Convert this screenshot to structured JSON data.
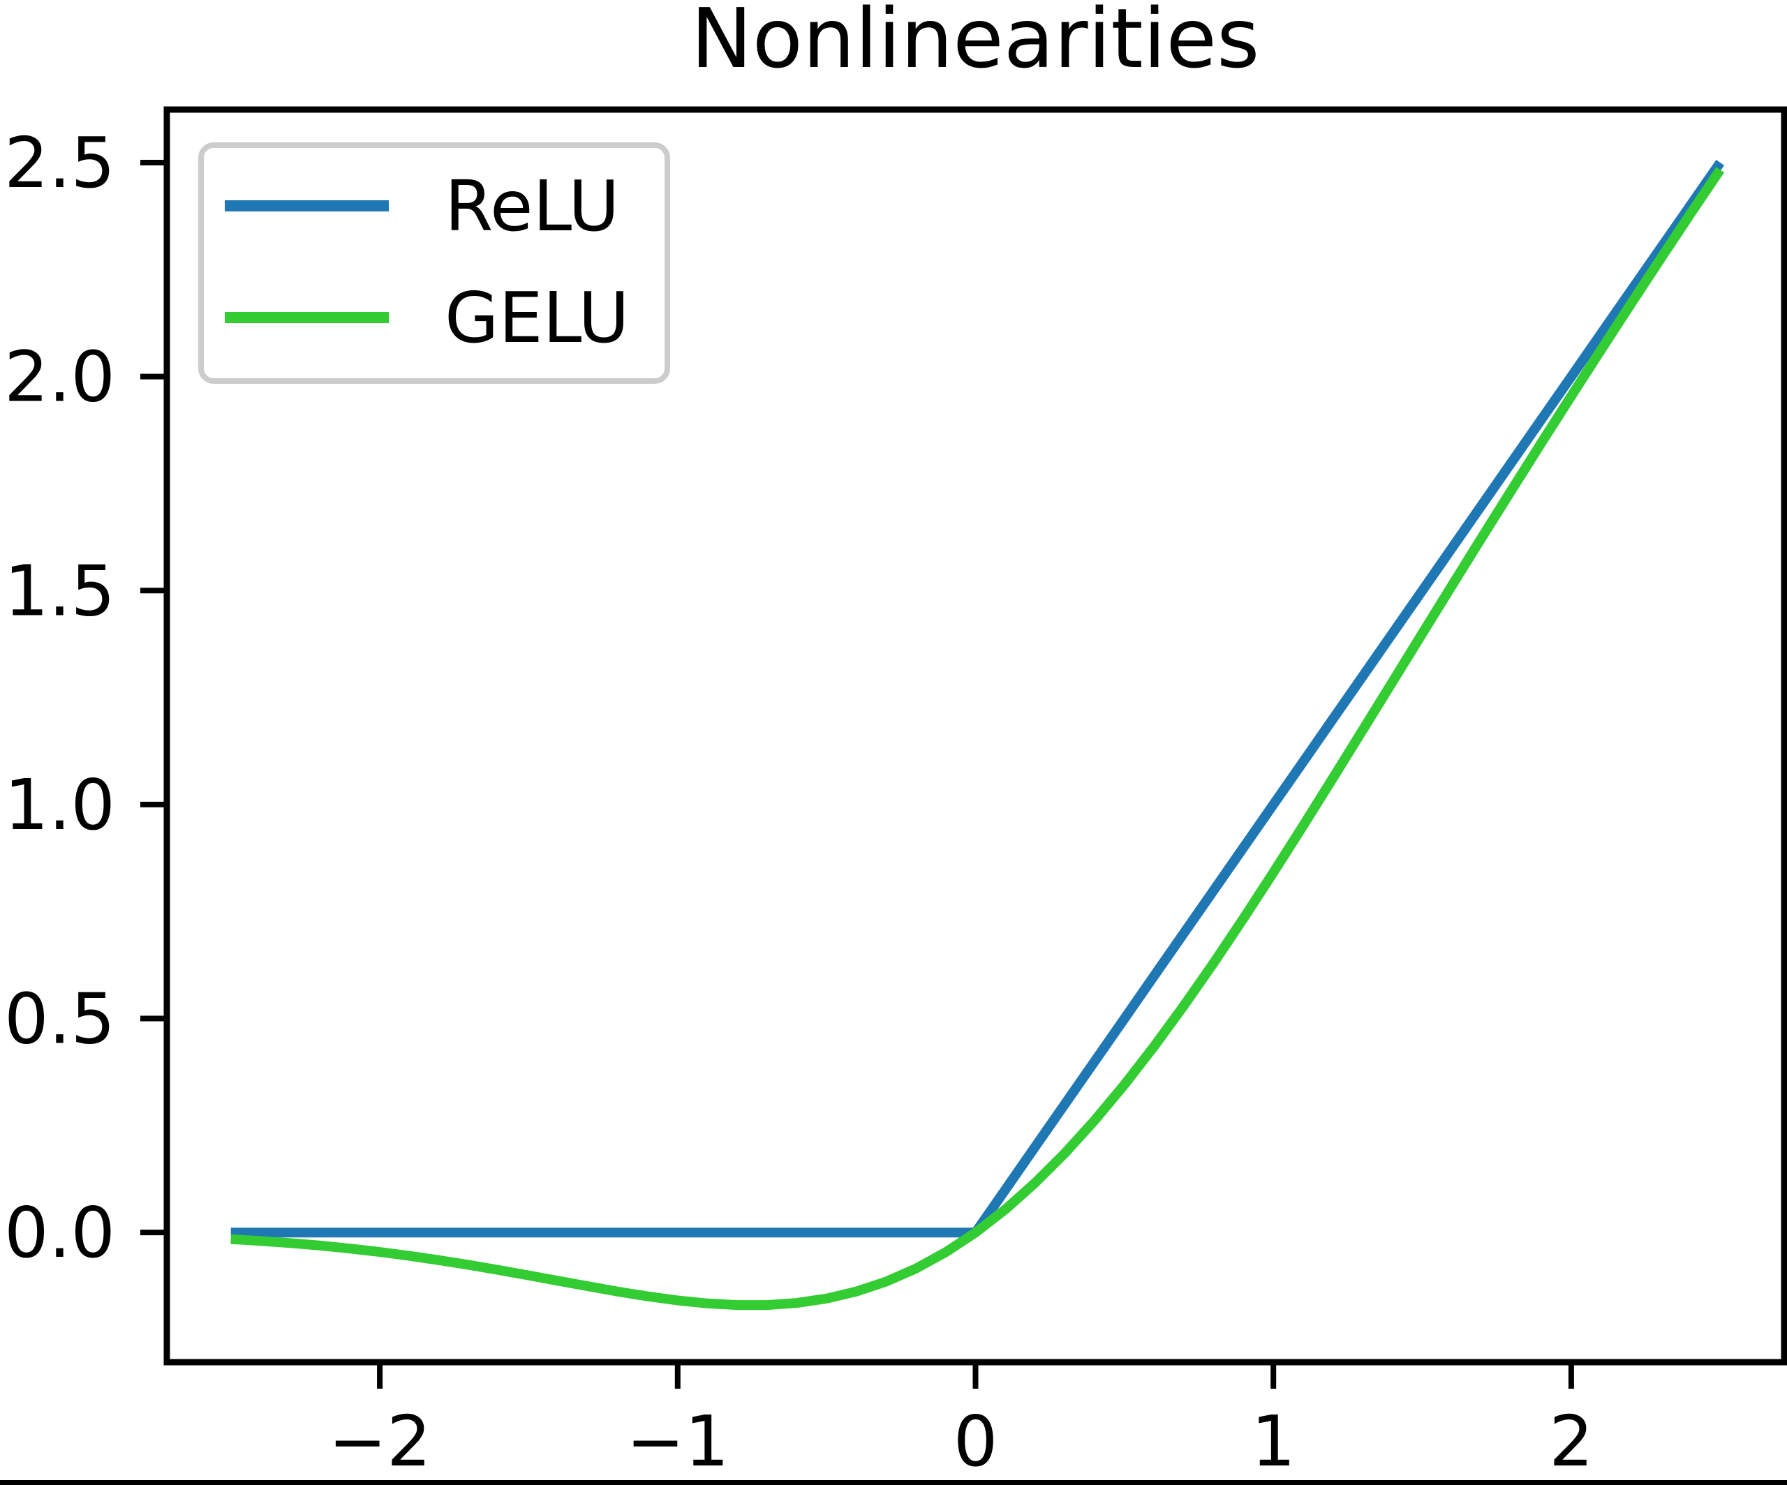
{
  "chart_data": {
    "type": "line",
    "title": "Nonlinearities",
    "xlabel": "",
    "ylabel": "",
    "xlim": [
      -2.715,
      2.715
    ],
    "ylim": [
      -0.303,
      2.624
    ],
    "grid": false,
    "xticks": {
      "values": [
        -2,
        -1,
        0,
        1,
        2
      ],
      "labels": [
        "−2",
        "−1",
        "0",
        "1",
        "2"
      ]
    },
    "yticks": {
      "values": [
        0.0,
        0.5,
        1.0,
        1.5,
        2.0,
        2.5
      ],
      "labels": [
        "0.0",
        "0.5",
        "1.0",
        "1.5",
        "2.0",
        "2.5"
      ]
    },
    "legend": {
      "position": "upper left",
      "entries": [
        {
          "label": "ReLU",
          "color": "#1f77b4"
        },
        {
          "label": "GELU",
          "color": "#33cc33"
        }
      ]
    },
    "x": [
      -2.5,
      -2.4,
      -2.3,
      -2.2,
      -2.1,
      -2.0,
      -1.9,
      -1.8,
      -1.7,
      -1.6,
      -1.5,
      -1.4,
      -1.3,
      -1.2,
      -1.1,
      -1.0,
      -0.9,
      -0.8,
      -0.7,
      -0.6,
      -0.5,
      -0.4,
      -0.3,
      -0.2,
      -0.1,
      0.0,
      0.1,
      0.2,
      0.3,
      0.4,
      0.5,
      0.6,
      0.7,
      0.8,
      0.9,
      1.0,
      1.1,
      1.2,
      1.3,
      1.4,
      1.5,
      1.6,
      1.7,
      1.8,
      1.9,
      2.0,
      2.1,
      2.2,
      2.3,
      2.4,
      2.5
    ],
    "series": [
      {
        "name": "ReLU",
        "color": "#1f77b4",
        "values": [
          0,
          0,
          0,
          0,
          0,
          0,
          0,
          0,
          0,
          0,
          0,
          0,
          0,
          0,
          0,
          0,
          0,
          0,
          0,
          0,
          0,
          0,
          0,
          0,
          0,
          0,
          0.1,
          0.2,
          0.3,
          0.4,
          0.5,
          0.6,
          0.7,
          0.8,
          0.9,
          1.0,
          1.1,
          1.2,
          1.3,
          1.4,
          1.5,
          1.6,
          1.7,
          1.8,
          1.9,
          2.0,
          2.1,
          2.2,
          2.3,
          2.4,
          2.5
        ]
      },
      {
        "name": "GELU",
        "color": "#33cc33",
        "values": [
          -0.0155,
          -0.0197,
          -0.0247,
          -0.0306,
          -0.0375,
          -0.0455,
          -0.0546,
          -0.0647,
          -0.0758,
          -0.0877,
          -0.1002,
          -0.1131,
          -0.1258,
          -0.1381,
          -0.1492,
          -0.1587,
          -0.1657,
          -0.1695,
          -0.1694,
          -0.1646,
          -0.1543,
          -0.1378,
          -0.1146,
          -0.0841,
          -0.046,
          0.0,
          0.054,
          0.1159,
          0.1854,
          0.2622,
          0.3457,
          0.4354,
          0.5306,
          0.6305,
          0.7343,
          0.8413,
          0.9508,
          1.0619,
          1.1742,
          1.2869,
          1.3998,
          1.5123,
          1.6242,
          1.7353,
          1.8454,
          1.9545,
          2.0625,
          2.1694,
          2.2753,
          2.3803,
          2.4835
        ]
      }
    ]
  },
  "page": {
    "background_color": "#ffffff",
    "bottom_bar_color": "#000000",
    "axes_color": "#000000",
    "legend_border_color": "#cccccc"
  }
}
